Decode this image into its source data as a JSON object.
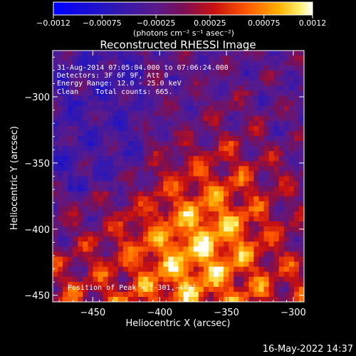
{
  "chart_data": {
    "type": "heatmap",
    "title": "Reconstructed RHESSI Image",
    "xlabel": "Heliocentric X (arcsec)",
    "ylabel": "Heliocentric Y (arcsec)",
    "xlim": [
      -480,
      -292
    ],
    "ylim": [
      -455,
      -265
    ],
    "x_ticks": [
      -450,
      -400,
      -350,
      -300
    ],
    "y_ticks": [
      -300,
      -350,
      -400,
      -450
    ],
    "x_tick_labels": [
      "−450",
      "−400",
      "−350",
      "−300"
    ],
    "y_tick_labels": [
      "−300",
      "−350",
      "−400",
      "−450"
    ],
    "colorbar": {
      "range": [
        -0.0012,
        0.0012
      ],
      "tick_values": [
        -0.0012,
        -0.00075,
        -0.00025,
        0.00025,
        0.00075,
        0.0012
      ],
      "tick_labels": [
        "−0.0012",
        "−0.00075",
        "−0.00025",
        "0.00025",
        "0.00075",
        "0.0012"
      ],
      "unit_label": "(photons cm⁻² s⁻¹ asec⁻²)"
    },
    "peak_position": [
      -301,
      -448
    ],
    "annotations": [
      "31-Aug-2014 07:05:04.000 to 07:06:24.000",
      "Detectors: 3F 6F 9F, Att 0",
      "Energy Range: 12.0 - 25.0 keV",
      "Clean    Total counts: 665.",
      "Position of Peak = [-301,-448]"
    ]
  },
  "footer": {
    "timestamp": "16-May-2022 14:37"
  }
}
